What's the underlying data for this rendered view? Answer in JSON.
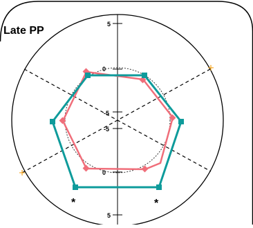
{
  "panel": {
    "title": "Late PP"
  },
  "chart_data": {
    "type": "radar",
    "title": "Late PP",
    "axes": 6,
    "rings": [
      {
        "label": "5",
        "value": 5
      },
      {
        "label": "0",
        "value": 0
      },
      {
        "label": "-5",
        "value": -5
      }
    ],
    "series": [
      {
        "values": [
          0.4,
          1.8,
          1.8,
          3.2,
          1.8,
          1.8
        ],
        "color": "#0E9B9B",
        "marker": "square"
      },
      {
        "values": [
          0.2,
          0.4,
          -0.6,
          0.8,
          -0.6,
          0.0
        ],
        "color": "#F06E7A",
        "marker": "diamond"
      }
    ],
    "significance_marker": "*",
    "colors": {
      "teal": "#0E9B9B",
      "salmon": "#F06E7A",
      "orange": "#F5A623"
    }
  }
}
